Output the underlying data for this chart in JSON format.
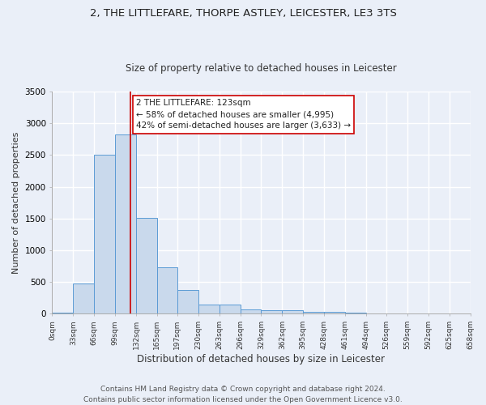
{
  "title_line1": "2, THE LITTLEFARE, THORPE ASTLEY, LEICESTER, LE3 3TS",
  "title_line2": "Size of property relative to detached houses in Leicester",
  "xlabel": "Distribution of detached houses by size in Leicester",
  "ylabel": "Number of detached properties",
  "bar_color": "#c9d9ec",
  "bar_edge_color": "#5b9bd5",
  "background_color": "#eaeff8",
  "grid_color": "#ffffff",
  "bin_edges": [
    0,
    33,
    66,
    99,
    132,
    165,
    197,
    230,
    263,
    296,
    329,
    362,
    395,
    428,
    461,
    494,
    526,
    559,
    592,
    625,
    658
  ],
  "bar_heights": [
    15,
    480,
    2510,
    2830,
    1510,
    730,
    380,
    150,
    150,
    70,
    55,
    55,
    30,
    30,
    20,
    0,
    0,
    0,
    0,
    0
  ],
  "tick_labels": [
    "0sqm",
    "33sqm",
    "66sqm",
    "99sqm",
    "132sqm",
    "165sqm",
    "197sqm",
    "230sqm",
    "263sqm",
    "296sqm",
    "329sqm",
    "362sqm",
    "395sqm",
    "428sqm",
    "461sqm",
    "494sqm",
    "526sqm",
    "559sqm",
    "592sqm",
    "625sqm",
    "658sqm"
  ],
  "property_size": 123,
  "vline_color": "#cc0000",
  "annotation_text": "2 THE LITTLEFARE: 123sqm\n← 58% of detached houses are smaller (4,995)\n42% of semi-detached houses are larger (3,633) →",
  "annotation_box_color": "#ffffff",
  "annotation_box_edge_color": "#cc0000",
  "footer_text": "Contains HM Land Registry data © Crown copyright and database right 2024.\nContains public sector information licensed under the Open Government Licence v3.0.",
  "ylim": [
    0,
    3500
  ],
  "title_fontsize": 9.5,
  "subtitle_fontsize": 8.5,
  "annotation_fontsize": 7.5,
  "footer_fontsize": 6.5,
  "ylabel_fontsize": 8,
  "xlabel_fontsize": 8.5
}
